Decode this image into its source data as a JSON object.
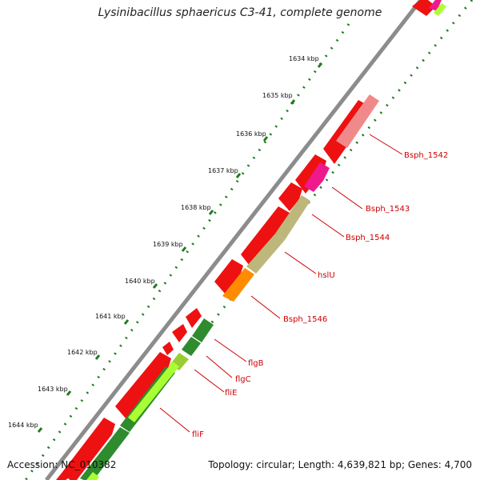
{
  "title": "Lysinibacillus sphaericus C3-41, complete genome",
  "footer": {
    "accession": "Accession: NC_010382",
    "summary": "Topology: circular; Length: 4,639,821 bp; Genes: 4,700"
  },
  "ticks": [
    "1634 kbp",
    "1635 kbp",
    "1636 kbp",
    "1637 kbp",
    "1638 kbp",
    "1639 kbp",
    "1640 kbp",
    "1641 kbp",
    "1642 kbp",
    "1643 kbp",
    "1644 kbp"
  ],
  "gene_labels": [
    "Bsph_1542",
    "Bsph_1543",
    "Bsph_1544",
    "hslU",
    "Bsph_1546",
    "flgB",
    "flgC",
    "fliE",
    "fliF"
  ],
  "colors": {
    "backbone": "#8c8c8c",
    "forward_genes": "#ee1111",
    "label": "#cc0000",
    "tick": "#1f7a1f",
    "Bsph_1542": "#f08a8a",
    "Bsph_1543": "#ee1a8c",
    "Bsph_1544": "#bdb77b",
    "hslU": "#bdb77b",
    "Bsph_1546": "#ff8c00",
    "flgB": "#2e8b2e",
    "flgC": "#2e8b2e",
    "fliE": "#9acd32",
    "fliF": "#2e8b2e"
  }
}
